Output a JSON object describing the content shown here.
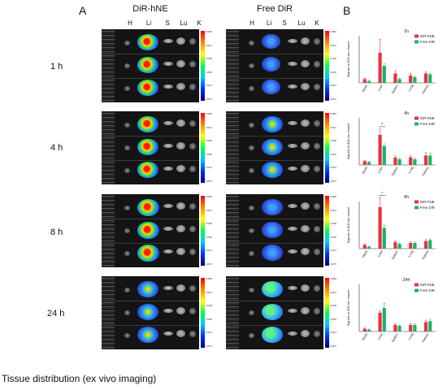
{
  "figure": {
    "panel_a": "A",
    "panel_b": "B",
    "group_titles": [
      "DiR-hNE",
      "Free DiR"
    ],
    "organ_headers": [
      "H",
      "Li",
      "S",
      "Lu",
      "K"
    ],
    "time_labels": [
      "1 h",
      "4 h",
      "8 h",
      "24 h"
    ],
    "colorbar_ticks": [
      "0.0884",
      "0.0641",
      "0.0498",
      "0.0355",
      "0.0213",
      "0.0070"
    ],
    "caption": "Tissue distribution (ex vivo imaging)"
  },
  "chart_data": [
    {
      "type": "bar",
      "title": "1h",
      "categories": [
        "Heart",
        "Liver",
        "Spleen",
        "Lung",
        "Kidney"
      ],
      "ylabel": "Signals in 800 nm chanel",
      "series": [
        {
          "name": "DiR-hNE",
          "color": "#e8323c",
          "values": [
            2,
            16,
            5,
            4,
            5
          ],
          "errors": [
            0.6,
            7,
            1.5,
            1,
            1
          ]
        },
        {
          "name": "Free DiR",
          "color": "#1db36a",
          "values": [
            1,
            9,
            2,
            3,
            4.5
          ],
          "errors": [
            0.4,
            1.2,
            0.6,
            0.5,
            0.6
          ]
        }
      ],
      "annotations": []
    },
    {
      "type": "bar",
      "title": "4h",
      "categories": [
        "Heart",
        "Liver",
        "Spleen",
        "Lung",
        "Kidney"
      ],
      "ylabel": "Signals in 800 nm chanel",
      "series": [
        {
          "name": "DiR-hNE",
          "color": "#e8323c",
          "values": [
            2,
            16,
            4,
            4,
            5
          ],
          "errors": [
            0.5,
            3,
            0.8,
            0.8,
            1.5
          ]
        },
        {
          "name": "Free DiR",
          "color": "#1db36a",
          "values": [
            1.5,
            10,
            3,
            3,
            5
          ],
          "errors": [
            0.4,
            1.2,
            0.6,
            0.6,
            1.2
          ]
        }
      ],
      "annotations": [
        "*"
      ]
    },
    {
      "type": "bar",
      "title": "8h",
      "categories": [
        "Heart",
        "Liver",
        "Spleen",
        "Lung",
        "Kidney"
      ],
      "ylabel": "Signals in 800 nm chanel",
      "series": [
        {
          "name": "DiR-hNE",
          "color": "#e8323c",
          "values": [
            2,
            22,
            3.5,
            3,
            4
          ],
          "errors": [
            0.5,
            5,
            0.6,
            0.6,
            0.8
          ]
        },
        {
          "name": "Free DiR",
          "color": "#1db36a",
          "values": [
            1,
            11,
            2.5,
            3,
            4.5
          ],
          "errors": [
            0.4,
            1.2,
            0.5,
            0.5,
            0.6
          ]
        }
      ],
      "annotations": [
        "*"
      ]
    },
    {
      "type": "bar",
      "title": "24h",
      "categories": [
        "Heart",
        "Liver",
        "Spleen",
        "Lung",
        "Kidney"
      ],
      "ylabel": "Signals in 800 nm chanel",
      "series": [
        {
          "name": "DiR-hNE",
          "color": "#e8323c",
          "values": [
            1.5,
            10,
            3.5,
            3.5,
            5
          ],
          "errors": [
            0.4,
            1,
            0.6,
            0.8,
            1
          ]
        },
        {
          "name": "Free DiR",
          "color": "#1db36a",
          "values": [
            1,
            12.5,
            3,
            3.5,
            5.5
          ],
          "errors": [
            0.3,
            2.5,
            0.5,
            0.6,
            1
          ]
        }
      ],
      "annotations": []
    }
  ]
}
